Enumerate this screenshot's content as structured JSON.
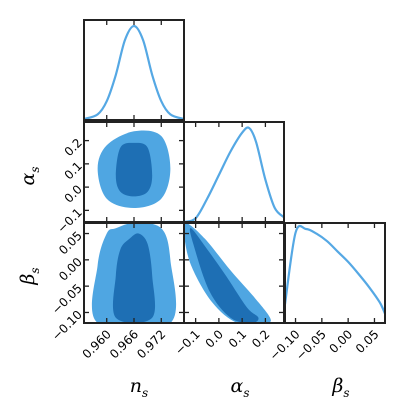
{
  "chart_data": {
    "type": "corner",
    "parameters": [
      {
        "symbol": "n",
        "subscript": "s",
        "range": [
          0.955,
          0.977
        ],
        "ticks": [
          0.96,
          0.966,
          0.972
        ],
        "tick_labels": [
          "0.960",
          "0.966",
          "0.972"
        ]
      },
      {
        "symbol": "α",
        "subscript": "s",
        "range": [
          -0.15,
          0.28
        ],
        "ticks": [
          -0.1,
          0.0,
          0.1,
          0.2
        ],
        "tick_labels": [
          "−0.1",
          "0.0",
          "0.1",
          "0.2"
        ]
      },
      {
        "symbol": "β",
        "subscript": "s",
        "range": [
          -0.12,
          0.07
        ],
        "ticks": [
          -0.1,
          -0.05,
          0.0,
          0.05
        ],
        "tick_labels": [
          "−0.10",
          "−0.05",
          "0.00",
          "0.05"
        ]
      }
    ],
    "marginals": [
      {
        "parameter": 0,
        "x": [
          0.955,
          0.958,
          0.96,
          0.962,
          0.964,
          0.966,
          0.968,
          0.97,
          0.972,
          0.974,
          0.977
        ],
        "density": [
          0.01,
          0.06,
          0.2,
          0.48,
          0.85,
          1.0,
          0.85,
          0.48,
          0.2,
          0.06,
          0.01
        ]
      },
      {
        "parameter": 1,
        "x": [
          -0.15,
          -0.1,
          -0.05,
          0.0,
          0.05,
          0.1,
          0.13,
          0.16,
          0.2,
          0.24,
          0.28
        ],
        "density": [
          0.0,
          0.04,
          0.25,
          0.5,
          0.75,
          0.95,
          1.0,
          0.85,
          0.45,
          0.15,
          0.05
        ]
      },
      {
        "parameter": 2,
        "x": [
          -0.12,
          -0.1,
          -0.08,
          -0.06,
          -0.04,
          -0.02,
          0.0,
          0.02,
          0.04,
          0.06,
          0.07
        ],
        "density": [
          0.2,
          0.96,
          1.0,
          0.95,
          0.87,
          0.76,
          0.65,
          0.52,
          0.38,
          0.22,
          0.1
        ]
      }
    ],
    "joint_contours": [
      {
        "x_param": 0,
        "y_param": 1,
        "inner": [
          [
            0.963,
            0.17
          ],
          [
            0.966,
            0.19
          ],
          [
            0.969,
            0.17
          ],
          [
            0.97,
            0.05
          ],
          [
            0.969,
            -0.02
          ],
          [
            0.966,
            -0.04
          ],
          [
            0.963,
            -0.02
          ],
          [
            0.962,
            0.05
          ]
        ],
        "outer": [
          [
            0.96,
            0.18
          ],
          [
            0.966,
            0.24
          ],
          [
            0.972,
            0.22
          ],
          [
            0.974,
            0.08
          ],
          [
            0.972,
            -0.05
          ],
          [
            0.966,
            -0.09
          ],
          [
            0.96,
            -0.05
          ],
          [
            0.958,
            0.08
          ]
        ]
      },
      {
        "x_param": 0,
        "y_param": 2,
        "inner": [
          [
            0.965,
            0.04
          ],
          [
            0.967,
            0.05
          ],
          [
            0.969,
            0.03
          ],
          [
            0.97,
            -0.03
          ],
          [
            0.97,
            -0.11
          ],
          [
            0.962,
            -0.11
          ],
          [
            0.962,
            -0.03
          ],
          [
            0.963,
            0.02
          ]
        ],
        "outer": [
          [
            0.962,
            0.06
          ],
          [
            0.966,
            0.07
          ],
          [
            0.972,
            0.06
          ],
          [
            0.974,
            0.0
          ],
          [
            0.974,
            -0.12
          ],
          [
            0.958,
            -0.12
          ],
          [
            0.958,
            -0.01
          ],
          [
            0.96,
            0.05
          ]
        ]
      },
      {
        "x_param": 1,
        "y_param": 2,
        "inner": [
          [
            -0.12,
            0.06
          ],
          [
            -0.05,
            0.02
          ],
          [
            0.03,
            -0.03
          ],
          [
            0.12,
            -0.09
          ],
          [
            0.17,
            -0.11
          ],
          [
            0.14,
            -0.12
          ],
          [
            0.05,
            -0.11
          ],
          [
            -0.04,
            -0.06
          ],
          [
            -0.11,
            0.03
          ]
        ],
        "outer": [
          [
            -0.14,
            0.07
          ],
          [
            -0.06,
            0.04
          ],
          [
            0.05,
            -0.02
          ],
          [
            0.15,
            -0.07
          ],
          [
            0.22,
            -0.11
          ],
          [
            0.2,
            -0.12
          ],
          [
            0.08,
            -0.12
          ],
          [
            -0.03,
            -0.08
          ],
          [
            -0.12,
            -0.01
          ],
          [
            -0.15,
            0.05
          ]
        ]
      }
    ],
    "colors": {
      "line": "#55a8e4",
      "outer_fill": "#4fa6e2",
      "inner_fill": "#1e6fb4",
      "frame": "#222222"
    }
  }
}
